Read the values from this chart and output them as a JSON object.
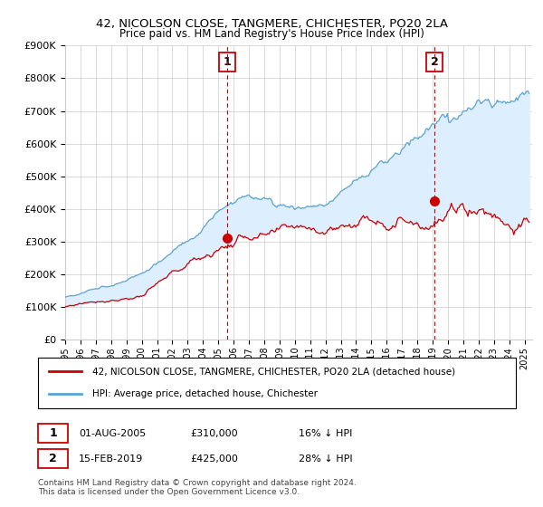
{
  "title": "42, NICOLSON CLOSE, TANGMERE, CHICHESTER, PO20 2LA",
  "subtitle": "Price paid vs. HM Land Registry's House Price Index (HPI)",
  "ylabel_ticks": [
    "£0",
    "£100K",
    "£200K",
    "£300K",
    "£400K",
    "£500K",
    "£600K",
    "£700K",
    "£800K",
    "£900K"
  ],
  "ytick_values": [
    0,
    100000,
    200000,
    300000,
    400000,
    500000,
    600000,
    700000,
    800000,
    900000
  ],
  "ylim": [
    0,
    900000
  ],
  "xlim_start": 1995.0,
  "xlim_end": 2025.5,
  "sale1_date": 2005.583,
  "sale1_price": 310000,
  "sale1_label": "1",
  "sale2_date": 2019.12,
  "sale2_price": 425000,
  "sale2_label": "2",
  "hpi_color": "#5ba3d0",
  "fill_color": "#ddeeff",
  "price_color": "#cc0000",
  "vline_color": "#cc0000",
  "grid_color": "#cccccc",
  "background_color": "#ffffff",
  "legend1_text": "42, NICOLSON CLOSE, TANGMERE, CHICHESTER, PO20 2LA (detached house)",
  "legend2_text": "HPI: Average price, detached house, Chichester",
  "footer": "Contains HM Land Registry data © Crown copyright and database right 2024.\nThis data is licensed under the Open Government Licence v3.0.",
  "xtick_years": [
    1995,
    1996,
    1997,
    1998,
    1999,
    2000,
    2001,
    2002,
    2003,
    2004,
    2005,
    2006,
    2007,
    2008,
    2009,
    2010,
    2011,
    2012,
    2013,
    2014,
    2015,
    2016,
    2017,
    2018,
    2019,
    2020,
    2021,
    2022,
    2023,
    2024,
    2025
  ]
}
